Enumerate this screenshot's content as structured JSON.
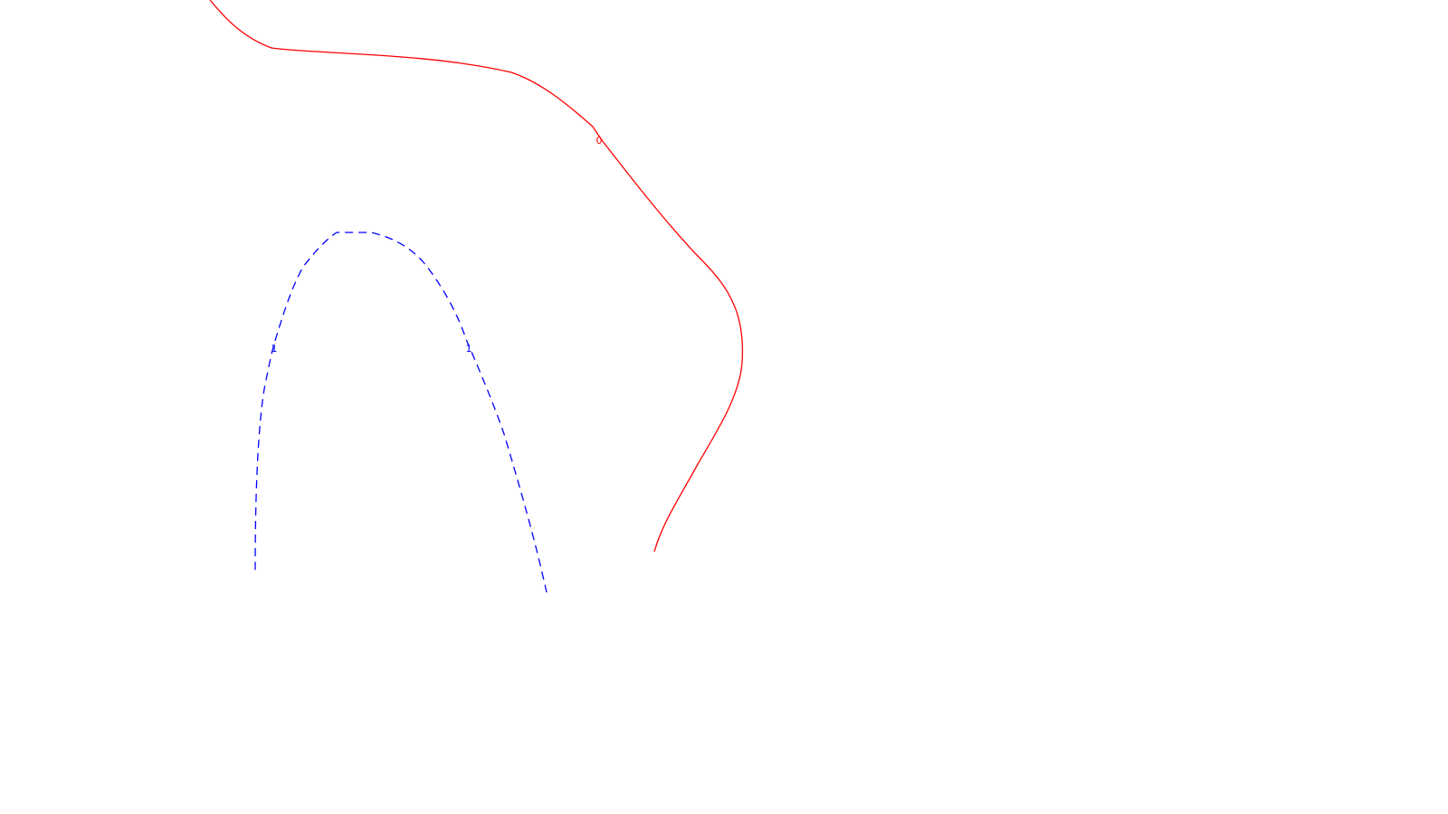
{
  "contours": [
    {
      "id": "contour-0",
      "label": "0",
      "color": "#ff0000",
      "style": "solid",
      "label_count": 1
    },
    {
      "id": "contour-1",
      "label": "1",
      "color": "#0000ff",
      "style": "dashed",
      "label_count": 2
    }
  ]
}
